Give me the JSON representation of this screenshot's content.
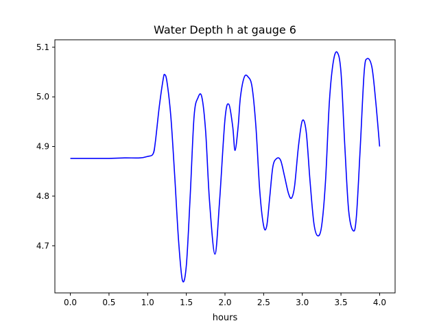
{
  "chart_data": {
    "type": "line",
    "title": "Water Depth h at gauge 6",
    "xlabel": "hours",
    "ylabel": "",
    "xlim": [
      -0.2,
      4.2
    ],
    "ylim": [
      4.605,
      5.115
    ],
    "x_ticks": [
      0.0,
      0.5,
      1.0,
      1.5,
      2.0,
      2.5,
      3.0,
      3.5,
      4.0
    ],
    "x_tick_labels": [
      "0.0",
      "0.5",
      "1.0",
      "1.5",
      "2.0",
      "2.5",
      "3.0",
      "3.5",
      "4.0"
    ],
    "y_ticks": [
      4.7,
      4.8,
      4.9,
      5.0,
      5.1
    ],
    "y_tick_labels": [
      "4.7",
      "4.8",
      "4.9",
      "5.0",
      "5.1"
    ],
    "grid": false,
    "series": [
      {
        "color": "#0000ff",
        "x": [
          0.0,
          0.5,
          0.7,
          0.9,
          1.0,
          1.07,
          1.1,
          1.15,
          1.2,
          1.22,
          1.25,
          1.3,
          1.35,
          1.4,
          1.45,
          1.5,
          1.55,
          1.6,
          1.65,
          1.7,
          1.75,
          1.8,
          1.87,
          1.93,
          2.0,
          2.05,
          2.1,
          2.13,
          2.17,
          2.2,
          2.25,
          2.3,
          2.35,
          2.4,
          2.45,
          2.5,
          2.54,
          2.58,
          2.62,
          2.67,
          2.72,
          2.77,
          2.82,
          2.86,
          2.9,
          2.95,
          3.0,
          3.05,
          3.1,
          3.15,
          3.2,
          3.25,
          3.3,
          3.35,
          3.4,
          3.45,
          3.5,
          3.55,
          3.6,
          3.66,
          3.7,
          3.75,
          3.8,
          3.84,
          3.9,
          3.95,
          4.0
        ],
        "y": [
          4.876,
          4.876,
          4.877,
          4.877,
          4.88,
          4.885,
          4.91,
          4.98,
          5.035,
          5.045,
          5.03,
          4.96,
          4.84,
          4.71,
          4.63,
          4.66,
          4.8,
          4.96,
          4.998,
          5.0,
          4.93,
          4.79,
          4.683,
          4.79,
          4.955,
          4.985,
          4.94,
          4.892,
          4.94,
          5.0,
          5.04,
          5.04,
          5.02,
          4.94,
          4.81,
          4.74,
          4.74,
          4.8,
          4.86,
          4.876,
          4.872,
          4.84,
          4.806,
          4.796,
          4.82,
          4.9,
          4.952,
          4.93,
          4.83,
          4.745,
          4.72,
          4.74,
          4.83,
          4.99,
          5.07,
          5.09,
          5.05,
          4.9,
          4.77,
          4.73,
          4.76,
          4.9,
          5.05,
          5.077,
          5.06,
          4.99,
          4.9
        ]
      }
    ]
  }
}
